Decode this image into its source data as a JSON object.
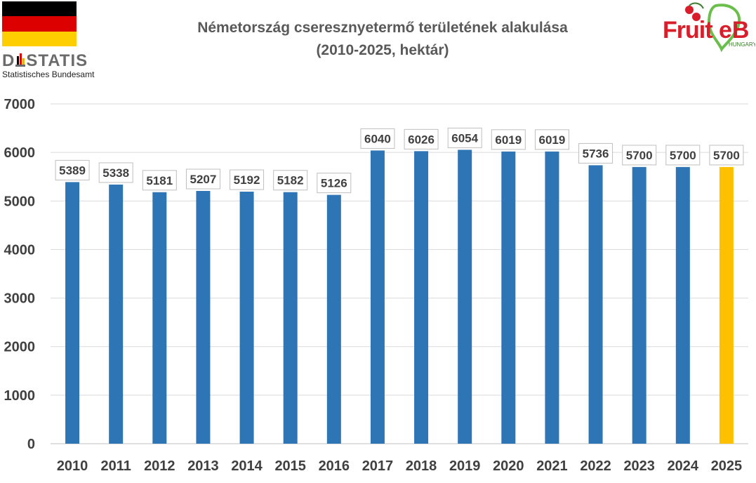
{
  "header": {
    "title_line1": "Németország cseresznyetermő területének alakulása",
    "title_line2": "(2010-2025, hektár)"
  },
  "logos": {
    "destatis_brand": "DESTATIS",
    "destatis_sub": "Statistisches Bundesamt",
    "fruitveb_brand": "FruitVeB",
    "fruitveb_sub": "HUNGARY",
    "flag_colors": [
      "#000000",
      "#dd0000",
      "#ffce00"
    ]
  },
  "chart_data": {
    "type": "bar",
    "title": "Németország cseresznyetermő területének alakulása (2010-2025, hektár)",
    "categories": [
      "2010",
      "2011",
      "2012",
      "2013",
      "2014",
      "2015",
      "2016",
      "2017",
      "2018",
      "2019",
      "2020",
      "2021",
      "2022",
      "2023",
      "2024",
      "2025"
    ],
    "values": [
      5389,
      5338,
      5181,
      5207,
      5192,
      5182,
      5126,
      6040,
      6026,
      6054,
      6019,
      6019,
      5736,
      5700,
      5700,
      5700
    ],
    "ylim": [
      0,
      7000
    ],
    "yticks": [
      0,
      1000,
      2000,
      3000,
      4000,
      5000,
      6000,
      7000
    ],
    "grid": true,
    "legend": "none",
    "bar_color": "#2e75b6",
    "highlight_color": "#ffc000",
    "highlight_index": 15
  }
}
